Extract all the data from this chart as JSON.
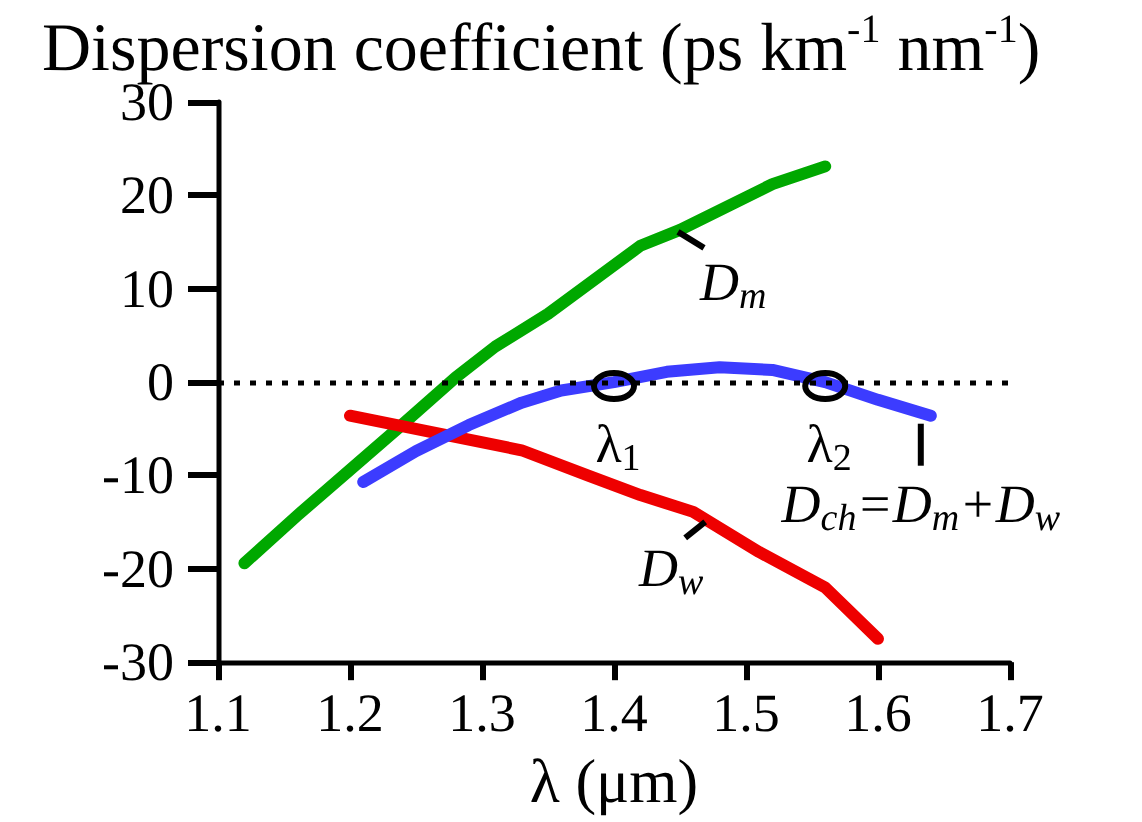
{
  "chart_data": {
    "type": "line",
    "ylabel": "Dispersion coefficient (ps km$^{-1}$ nm$^{-1}$)",
    "xlabel": "λ (μm)",
    "xlim": [
      1.1,
      1.7
    ],
    "xticks": [
      1.1,
      1.2,
      1.3,
      1.4,
      1.5,
      1.6,
      1.7
    ],
    "ylim": [
      -30,
      30
    ],
    "yticks": [
      -30,
      -20,
      -10,
      0,
      10,
      20,
      30
    ],
    "marker": "none",
    "line_style": "solid",
    "series": [
      {
        "name": "D$_{m}$",
        "color": "#00a800",
        "x": [
          1.12,
          1.16,
          1.2,
          1.24,
          1.28,
          1.31,
          1.35,
          1.42,
          1.45,
          1.52,
          1.56
        ],
        "values": [
          -19.4,
          -14.3,
          -9.4,
          -4.5,
          0.5,
          3.8,
          7.3,
          14.6,
          16.3,
          21.2,
          23.1
        ]
      },
      {
        "name": "D$_{w}$",
        "color": "#ee0000",
        "x": [
          1.2,
          1.26,
          1.33,
          1.38,
          1.42,
          1.46,
          1.51,
          1.56,
          1.6
        ],
        "values": [
          -3.6,
          -5.3,
          -7.3,
          -10.0,
          -12.1,
          -13.9,
          -18.2,
          -22.0,
          -27.5
        ]
      },
      {
        "name": "D$_{ch}$=D$_{m}$+D$_{w}$",
        "color": "#3c3cff",
        "x": [
          1.21,
          1.25,
          1.29,
          1.33,
          1.36,
          1.4,
          1.44,
          1.48,
          1.52,
          1.56,
          1.6,
          1.64
        ],
        "values": [
          -10.7,
          -7.4,
          -4.6,
          -2.2,
          -0.9,
          0,
          1.1,
          1.6,
          1.3,
          0,
          -1.9,
          -3.6
        ]
      }
    ],
    "ref_lines": [
      {
        "axis": "y",
        "value": 0,
        "color": "#000000",
        "line_style": "dotted"
      }
    ],
    "annotations": [
      {
        "text": "λ$_{1}$",
        "x": 1.4,
        "y": 0
      },
      {
        "text": "λ$_{2}$",
        "x": 1.56,
        "y": 0
      }
    ]
  }
}
